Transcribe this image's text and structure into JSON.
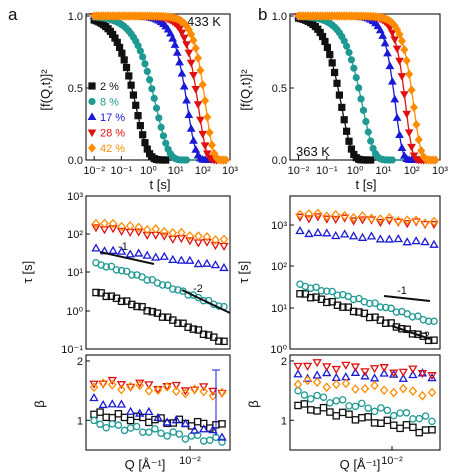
{
  "colors": {
    "2 %": "#111111",
    "8 %": "#1f9a93",
    "17 %": "#1a1ad6",
    "28 %": "#e01010",
    "42 %": "#ff8c00"
  },
  "labels": {
    "panel_a": "a",
    "panel_b": "b",
    "temp_a": "433 K",
    "temp_b": "363 K",
    "y_top": "[f(Q,t)]²",
    "x_top": "t [s]",
    "y_mid": "τ [s]",
    "y_bot": "β",
    "x_bot": "Q [Å⁻¹]",
    "slope_m1": "-1",
    "slope_m2": "-2"
  },
  "chart_data": [
    {
      "type": "scatter",
      "panel": "a-top",
      "xlabel": "t [s]",
      "ylabel": "[f(Q,t)]²",
      "xscale": "log",
      "xlim": [
        0.005,
        1000
      ],
      "ylim": [
        0,
        1.05
      ],
      "yticks": [
        "0.0",
        "0.5",
        "1.0"
      ],
      "xticks": [
        "10⁻²",
        "10⁻¹",
        "10⁰",
        "10¹",
        "10²",
        "10³"
      ],
      "annotation": "433 K",
      "legend_position": "left",
      "series": [
        {
          "name": "2 %",
          "marker": "square",
          "tau": 0.7,
          "beta": 1.0
        },
        {
          "name": "8 %",
          "marker": "circle",
          "tau": 4.0,
          "beta": 0.95
        },
        {
          "name": "17 %",
          "marker": "triangle-up",
          "tau": 45,
          "beta": 1.4
        },
        {
          "name": "28 %",
          "marker": "triangle-down",
          "tau": 110,
          "beta": 1.5
        },
        {
          "name": "42 %",
          "marker": "diamond",
          "tau": 200,
          "beta": 1.6
        }
      ]
    },
    {
      "type": "scatter",
      "panel": "b-top",
      "xlabel": "t [s]",
      "ylabel": "[f(Q,t)]²",
      "xscale": "log",
      "xlim": [
        0.005,
        1000
      ],
      "ylim": [
        0,
        1.05
      ],
      "yticks": [
        "0.0",
        "0.5",
        "1.0"
      ],
      "xticks": [
        "10⁻²",
        "10⁻¹",
        "10⁰",
        "10¹",
        "10²",
        "10³"
      ],
      "annotation": "363 K",
      "series": [
        {
          "name": "2 %",
          "marker": "square",
          "tau": 0.6,
          "beta": 1.2
        },
        {
          "name": "8 %",
          "marker": "circle",
          "tau": 3.5,
          "beta": 1.1
        },
        {
          "name": "17 %",
          "marker": "triangle-up",
          "tau": 40,
          "beta": 1.8
        },
        {
          "name": "28 %",
          "marker": "triangle-down",
          "tau": 90,
          "beta": 1.9
        },
        {
          "name": "42 %",
          "marker": "diamond",
          "tau": 180,
          "beta": 1.7
        }
      ]
    },
    {
      "type": "scatter",
      "panel": "a-mid",
      "ylabel": "τ [s]",
      "xscale": "log",
      "yscale": "log",
      "ylim": [
        0.1,
        1000
      ],
      "yticks": [
        "10⁻¹",
        "10⁰",
        "10¹",
        "10²",
        "10³"
      ],
      "guides": [
        {
          "label": "-1",
          "slope": -1
        },
        {
          "label": "-2",
          "slope": -2
        }
      ],
      "series": [
        {
          "name": "2 %",
          "marker": "square-open",
          "start": 3.0,
          "end": 0.15
        },
        {
          "name": "8 %",
          "marker": "circle-open",
          "start": 17,
          "end": 1.2
        },
        {
          "name": "17 %",
          "marker": "triangle-up-open",
          "start": 40,
          "end": 14
        },
        {
          "name": "28 %",
          "marker": "triangle-down-open",
          "start": 150,
          "end": 50
        },
        {
          "name": "42 %",
          "marker": "diamond-open",
          "start": 200,
          "end": 70
        }
      ]
    },
    {
      "type": "scatter",
      "panel": "b-mid",
      "ylabel": "τ [s]",
      "xscale": "log",
      "yscale": "log",
      "ylim": [
        1,
        3000
      ],
      "yticks": [
        "10⁰",
        "10¹",
        "10²",
        "10³"
      ],
      "guides": [
        {
          "label": "-1",
          "slope": -1
        },
        {
          "label": "-2",
          "slope": -2
        }
      ],
      "series": [
        {
          "name": "2 %",
          "marker": "square-open",
          "start": 18,
          "end": 1.5
        },
        {
          "name": "8 %",
          "marker": "circle-open",
          "start": 28,
          "end": 4.0
        },
        {
          "name": "17 %",
          "marker": "triangle-up-open",
          "start": 450,
          "end": 250
        },
        {
          "name": "28 %",
          "marker": "triangle-down-open",
          "start": 1000,
          "end": 700
        },
        {
          "name": "42 %",
          "marker": "diamond-open",
          "start": 1200,
          "end": 750
        }
      ]
    },
    {
      "type": "scatter",
      "panel": "a-bot",
      "xlabel": "Q [Å⁻¹]",
      "ylabel": "β",
      "xscale": "log",
      "ylim": [
        0.5,
        2.1
      ],
      "yticks": [
        "1",
        "2"
      ],
      "xticks": [
        "10⁻²"
      ],
      "series": [
        {
          "name": "2 %",
          "marker": "square-open",
          "start": 1.1,
          "end": 0.9
        },
        {
          "name": "8 %",
          "marker": "circle-open",
          "start": 0.95,
          "end": 0.65
        },
        {
          "name": "17 %",
          "marker": "triangle-up-open",
          "start": 1.35,
          "end": 0.75
        },
        {
          "name": "28 %",
          "marker": "triangle-down-open",
          "start": 1.65,
          "end": 1.5
        },
        {
          "name": "42 %",
          "marker": "diamond-open",
          "start": 1.6,
          "end": 1.45
        }
      ]
    },
    {
      "type": "scatter",
      "panel": "b-bot",
      "xlabel": "Q [Å⁻¹]",
      "ylabel": "β",
      "xscale": "log",
      "ylim": [
        0.5,
        2.1
      ],
      "yticks": [
        "1",
        "2"
      ],
      "xticks": [
        "10⁻²"
      ],
      "series": [
        {
          "name": "2 %",
          "marker": "square-open",
          "start": 1.25,
          "end": 0.8
        },
        {
          "name": "8 %",
          "marker": "circle-open",
          "start": 1.45,
          "end": 1.0
        },
        {
          "name": "17 %",
          "marker": "triangle-up-open",
          "start": 1.75,
          "end": 1.75
        },
        {
          "name": "28 %",
          "marker": "triangle-down-open",
          "start": 1.95,
          "end": 1.8
        },
        {
          "name": "42 %",
          "marker": "diamond-open",
          "start": 1.65,
          "end": 1.45
        }
      ]
    }
  ]
}
